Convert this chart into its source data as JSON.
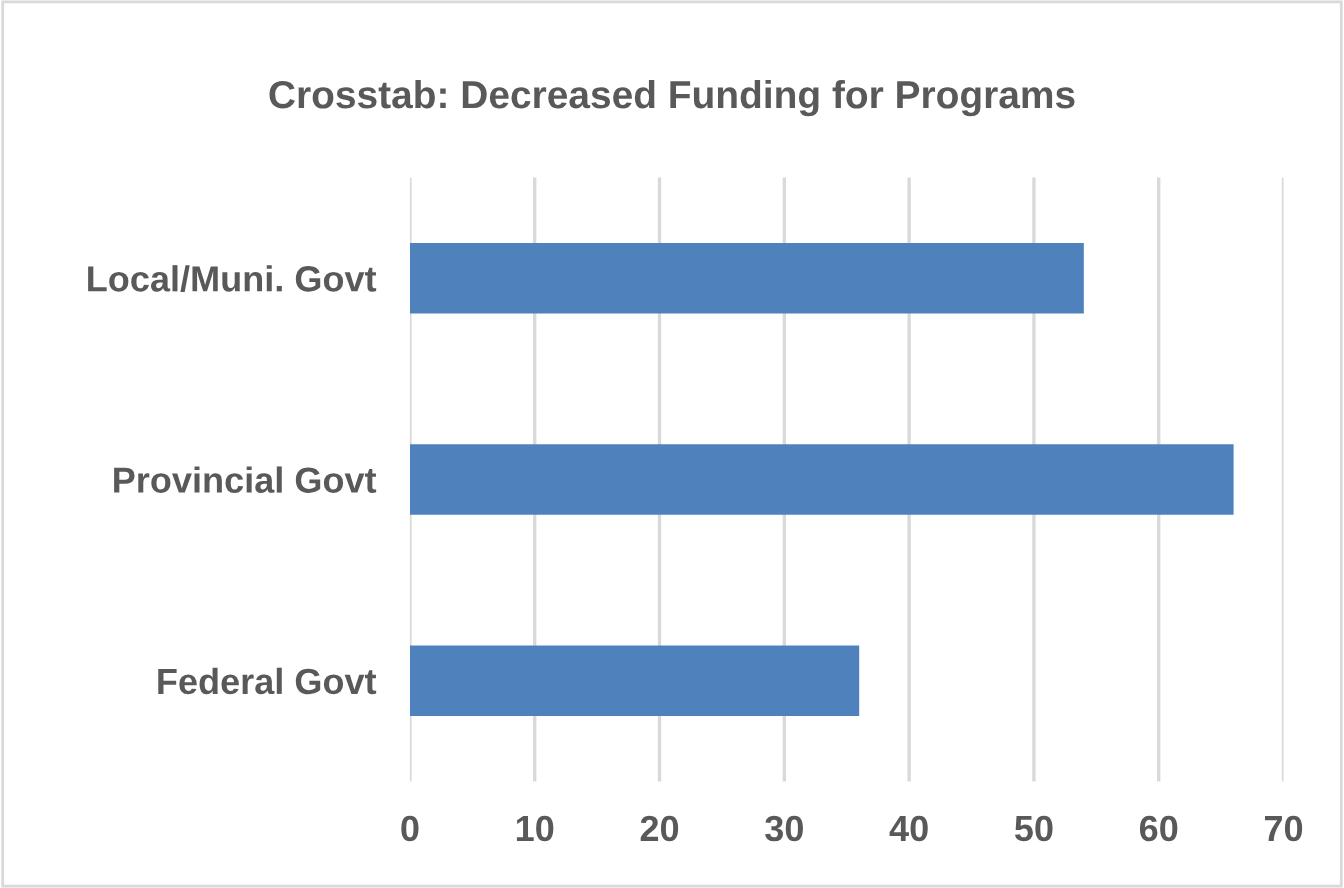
{
  "chart_data": {
    "type": "bar",
    "orientation": "horizontal",
    "title": "Crosstab: Decreased Funding for Programs",
    "categories": [
      "Local/Muni. Govt",
      "Provincial Govt",
      "Federal Govt"
    ],
    "values": [
      54,
      66,
      36
    ],
    "color": "#4f81bd",
    "xlim": [
      0,
      70
    ],
    "xticks": [
      0,
      10,
      20,
      30,
      40,
      50,
      60,
      70
    ],
    "grid": "x"
  }
}
